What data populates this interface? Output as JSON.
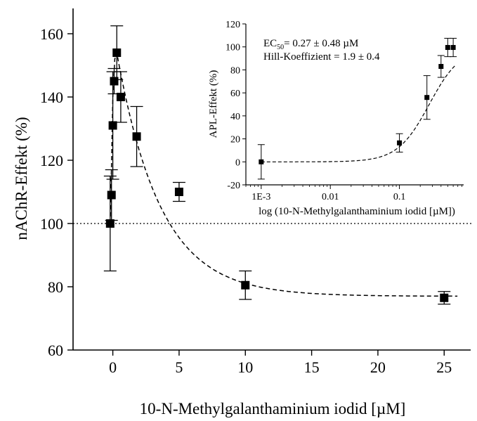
{
  "chart_data": [
    {
      "id": "main",
      "type": "scatter",
      "xlabel": "10-N-Methylgalanthaminium  iodid [µM]",
      "ylabel": "nAChR-Effekt (%)",
      "xlim": [
        -3,
        27
      ],
      "ylim": [
        60,
        168
      ],
      "xticks": [
        0,
        5,
        10,
        15,
        20,
        25
      ],
      "yticks": [
        60,
        80,
        100,
        120,
        140,
        160
      ],
      "grid": false,
      "reference_line": {
        "y": 100,
        "style": "dotted"
      },
      "points": [
        {
          "x": -0.2,
          "y": 100,
          "err": 15
        },
        {
          "x": -0.1,
          "y": 109,
          "err": 8
        },
        {
          "x": 0.0,
          "y": 131,
          "err": 17
        },
        {
          "x": 0.1,
          "y": 145,
          "err": 4
        },
        {
          "x": 0.3,
          "y": 154,
          "err": 8.5
        },
        {
          "x": 0.6,
          "y": 140,
          "err": 8
        },
        {
          "x": 1.8,
          "y": 127.5,
          "err": 9.5
        },
        {
          "x": 5.0,
          "y": 110,
          "err": 3
        },
        {
          "x": 10.0,
          "y": 80.5,
          "err": 4.5
        },
        {
          "x": 25.0,
          "y": 76.5,
          "err": 2
        }
      ],
      "fit_curve": "dashed"
    },
    {
      "id": "inset",
      "type": "scatter",
      "xlabel": "log (10-N-Methylgalanthaminium iodid [µM])",
      "ylabel": "APL-Effekt (%)",
      "xscale": "log",
      "xlim": [
        0.0006,
        0.85
      ],
      "ylim": [
        -20,
        120
      ],
      "xtick_values": [
        0.001,
        0.01,
        0.1
      ],
      "xtick_labels": [
        "1E-3",
        "0.01",
        "0.1"
      ],
      "yticks": [
        -20,
        0,
        20,
        40,
        60,
        80,
        100,
        120
      ],
      "annotations": [
        "= 0.27 ± 0.48 µM",
        "Hill-Koeffizient = 1.9 ± 0.4"
      ],
      "points": [
        {
          "x": 0.001,
          "y": 0,
          "err": 15
        },
        {
          "x": 0.1,
          "y": 16.5,
          "err": 8
        },
        {
          "x": 0.25,
          "y": 56,
          "err": 19
        },
        {
          "x": 0.4,
          "y": 83,
          "err": 9.5
        },
        {
          "x": 0.5,
          "y": 99.5,
          "err": 8
        },
        {
          "x": 0.6,
          "y": 99.5,
          "err": 8
        }
      ],
      "fit": {
        "type": "hill",
        "ec50": 0.27,
        "hill_coefficient": 1.9,
        "max": 100
      }
    }
  ]
}
